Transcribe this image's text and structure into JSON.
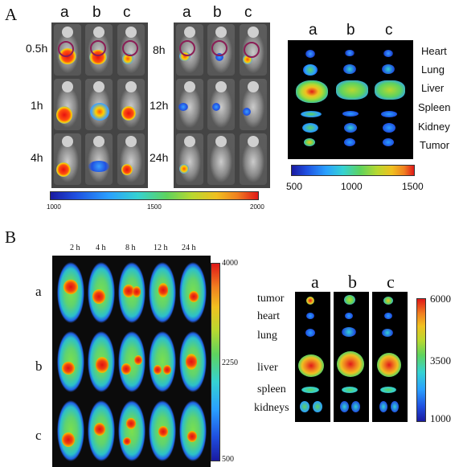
{
  "panel_a": {
    "panel_letter": "A",
    "group_labels_left": [
      "a",
      "b",
      "c"
    ],
    "group_labels_right": [
      "a",
      "b",
      "c"
    ],
    "time_labels_left": [
      "0.5h",
      "1h",
      "4h"
    ],
    "time_labels_right": [
      "8h",
      "12h",
      "24h"
    ],
    "ex_vivo_group_labels": [
      "a",
      "b",
      "c"
    ],
    "organ_labels": [
      "Heart",
      "Lung",
      "Liver",
      "Spleen",
      "Kidney",
      "Tumor"
    ],
    "in_vivo_scale_ticks": [
      "1000",
      "1500",
      "2000"
    ],
    "ex_vivo_scale_ticks": [
      "500",
      "1000",
      "1500"
    ]
  },
  "panel_b": {
    "panel_letter": "B",
    "time_labels": [
      "2 h",
      "4 h",
      "8 h",
      "12 h",
      "24 h"
    ],
    "row_labels": [
      "a",
      "b",
      "c"
    ],
    "in_vivo_scale_ticks": [
      "4000",
      "2250",
      "500"
    ],
    "organ_labels": [
      "tumor",
      "heart",
      "lung",
      "liver",
      "spleen",
      "kidneys"
    ],
    "ex_vivo_group_labels": [
      "a",
      "b",
      "c"
    ],
    "ex_vivo_scale_ticks": [
      "6000",
      "3500",
      "1000"
    ]
  }
}
